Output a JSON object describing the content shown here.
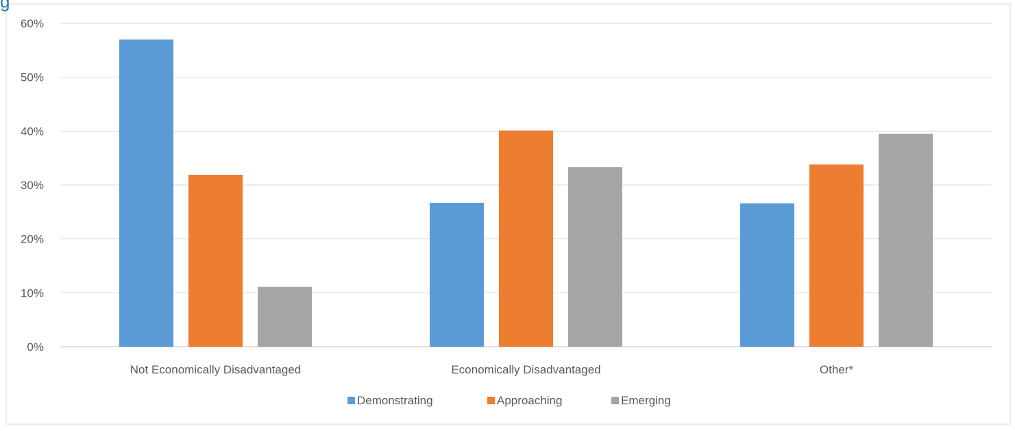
{
  "chart_title": "g",
  "chart_data": {
    "type": "bar",
    "title": "",
    "xlabel": "",
    "ylabel": "",
    "categories": [
      "Not Economically Disadvantaged",
      "Economically Disadvantaged",
      "Other*"
    ],
    "series": [
      {
        "name": "Demonstrating",
        "color": "#5B9BD5",
        "values": [
          57,
          26.7,
          26.6
        ]
      },
      {
        "name": "Approaching",
        "color": "#ED7D31",
        "values": [
          31.9,
          40.1,
          33.8
        ]
      },
      {
        "name": "Emerging",
        "color": "#A5A5A5",
        "values": [
          11.1,
          33.3,
          39.5
        ]
      }
    ],
    "ylim": [
      0,
      60
    ],
    "yticks": [
      "0%",
      "10%",
      "20%",
      "30%",
      "40%",
      "50%",
      "60%"
    ],
    "grid": true,
    "legend": "bottom"
  }
}
